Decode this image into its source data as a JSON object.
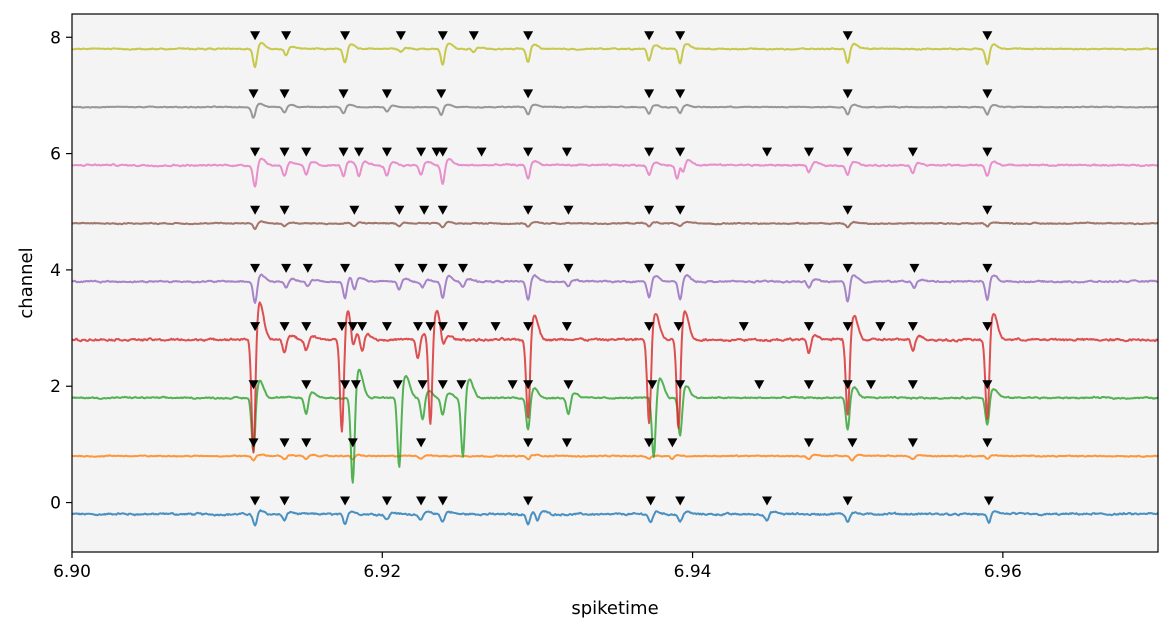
{
  "chart_data": {
    "type": "line",
    "title": "",
    "xlabel": "spiketime",
    "ylabel": "channel",
    "xlim": [
      6.9,
      6.97
    ],
    "ylim": [
      -0.85,
      8.4
    ],
    "xticks": [
      6.9,
      6.92,
      6.94,
      6.96
    ],
    "xtick_labels": [
      "6.90",
      "6.92",
      "6.94",
      "6.96"
    ],
    "yticks": [
      0,
      2,
      4,
      6,
      8
    ],
    "ytick_labels": [
      "0",
      "2",
      "4",
      "6",
      "8"
    ],
    "grid": false,
    "legend": "none",
    "background_color": "#f4f4f4",
    "marker": "black-triangle-down",
    "events": [
      {
        "x": 6.9118,
        "channel": 0
      },
      {
        "x": 6.9137,
        "channel": 0
      },
      {
        "x": 6.9176,
        "channel": 0
      },
      {
        "x": 6.9203,
        "channel": 0
      },
      {
        "x": 6.9225,
        "channel": 0
      },
      {
        "x": 6.9239,
        "channel": 0
      },
      {
        "x": 6.9294,
        "channel": 0
      },
      {
        "x": 6.9373,
        "channel": 0
      },
      {
        "x": 6.9392,
        "channel": 0
      },
      {
        "x": 6.9448,
        "channel": 0
      },
      {
        "x": 6.95,
        "channel": 0
      },
      {
        "x": 6.9591,
        "channel": 0
      },
      {
        "x": 6.9117,
        "channel": 1
      },
      {
        "x": 6.9137,
        "channel": 1
      },
      {
        "x": 6.9151,
        "channel": 1
      },
      {
        "x": 6.9181,
        "channel": 1
      },
      {
        "x": 6.9225,
        "channel": 1
      },
      {
        "x": 6.9294,
        "channel": 1
      },
      {
        "x": 6.9319,
        "channel": 1
      },
      {
        "x": 6.9372,
        "channel": 1
      },
      {
        "x": 6.9387,
        "channel": 1
      },
      {
        "x": 6.9475,
        "channel": 1
      },
      {
        "x": 6.9503,
        "channel": 1
      },
      {
        "x": 6.9542,
        "channel": 1
      },
      {
        "x": 6.959,
        "channel": 1
      },
      {
        "x": 6.9117,
        "channel": 2
      },
      {
        "x": 6.9151,
        "channel": 2
      },
      {
        "x": 6.9176,
        "channel": 2
      },
      {
        "x": 6.9183,
        "channel": 2
      },
      {
        "x": 6.921,
        "channel": 2
      },
      {
        "x": 6.9226,
        "channel": 2
      },
      {
        "x": 6.9239,
        "channel": 2
      },
      {
        "x": 6.9251,
        "channel": 2
      },
      {
        "x": 6.9284,
        "channel": 2
      },
      {
        "x": 6.9294,
        "channel": 2
      },
      {
        "x": 6.932,
        "channel": 2
      },
      {
        "x": 6.9374,
        "channel": 2
      },
      {
        "x": 6.9392,
        "channel": 2
      },
      {
        "x": 6.9443,
        "channel": 2
      },
      {
        "x": 6.9475,
        "channel": 2
      },
      {
        "x": 6.95,
        "channel": 2
      },
      {
        "x": 6.9515,
        "channel": 2
      },
      {
        "x": 6.9542,
        "channel": 2
      },
      {
        "x": 6.959,
        "channel": 2
      },
      {
        "x": 6.9118,
        "channel": 3
      },
      {
        "x": 6.9137,
        "channel": 3
      },
      {
        "x": 6.9151,
        "channel": 3
      },
      {
        "x": 6.9174,
        "channel": 3
      },
      {
        "x": 6.9181,
        "channel": 3
      },
      {
        "x": 6.9187,
        "channel": 3
      },
      {
        "x": 6.9203,
        "channel": 3
      },
      {
        "x": 6.9223,
        "channel": 3
      },
      {
        "x": 6.9231,
        "channel": 3
      },
      {
        "x": 6.9239,
        "channel": 3
      },
      {
        "x": 6.9252,
        "channel": 3
      },
      {
        "x": 6.9273,
        "channel": 3
      },
      {
        "x": 6.9294,
        "channel": 3
      },
      {
        "x": 6.9319,
        "channel": 3
      },
      {
        "x": 6.9372,
        "channel": 3
      },
      {
        "x": 6.9391,
        "channel": 3
      },
      {
        "x": 6.9433,
        "channel": 3
      },
      {
        "x": 6.9475,
        "channel": 3
      },
      {
        "x": 6.95,
        "channel": 3
      },
      {
        "x": 6.9521,
        "channel": 3
      },
      {
        "x": 6.9542,
        "channel": 3
      },
      {
        "x": 6.959,
        "channel": 3
      },
      {
        "x": 6.9118,
        "channel": 4
      },
      {
        "x": 6.9138,
        "channel": 4
      },
      {
        "x": 6.9152,
        "channel": 4
      },
      {
        "x": 6.9176,
        "channel": 4
      },
      {
        "x": 6.9211,
        "channel": 4
      },
      {
        "x": 6.9226,
        "channel": 4
      },
      {
        "x": 6.9239,
        "channel": 4
      },
      {
        "x": 6.9252,
        "channel": 4
      },
      {
        "x": 6.9294,
        "channel": 4
      },
      {
        "x": 6.932,
        "channel": 4
      },
      {
        "x": 6.9372,
        "channel": 4
      },
      {
        "x": 6.9392,
        "channel": 4
      },
      {
        "x": 6.9475,
        "channel": 4
      },
      {
        "x": 6.95,
        "channel": 4
      },
      {
        "x": 6.9543,
        "channel": 4
      },
      {
        "x": 6.959,
        "channel": 4
      },
      {
        "x": 6.9118,
        "channel": 5
      },
      {
        "x": 6.9137,
        "channel": 5
      },
      {
        "x": 6.9182,
        "channel": 5
      },
      {
        "x": 6.9211,
        "channel": 5
      },
      {
        "x": 6.9227,
        "channel": 5
      },
      {
        "x": 6.9239,
        "channel": 5
      },
      {
        "x": 6.9294,
        "channel": 5
      },
      {
        "x": 6.932,
        "channel": 5
      },
      {
        "x": 6.9372,
        "channel": 5
      },
      {
        "x": 6.9392,
        "channel": 5
      },
      {
        "x": 6.95,
        "channel": 5
      },
      {
        "x": 6.959,
        "channel": 5
      },
      {
        "x": 6.9118,
        "channel": 6
      },
      {
        "x": 6.9137,
        "channel": 6
      },
      {
        "x": 6.9151,
        "channel": 6
      },
      {
        "x": 6.9175,
        "channel": 6
      },
      {
        "x": 6.9185,
        "channel": 6
      },
      {
        "x": 6.9203,
        "channel": 6
      },
      {
        "x": 6.9225,
        "channel": 6
      },
      {
        "x": 6.9235,
        "channel": 6
      },
      {
        "x": 6.9239,
        "channel": 6
      },
      {
        "x": 6.9264,
        "channel": 6
      },
      {
        "x": 6.9294,
        "channel": 6
      },
      {
        "x": 6.9319,
        "channel": 6
      },
      {
        "x": 6.9372,
        "channel": 6
      },
      {
        "x": 6.9392,
        "channel": 6
      },
      {
        "x": 6.9448,
        "channel": 6
      },
      {
        "x": 6.9475,
        "channel": 6
      },
      {
        "x": 6.95,
        "channel": 6
      },
      {
        "x": 6.9542,
        "channel": 6
      },
      {
        "x": 6.959,
        "channel": 6
      },
      {
        "x": 6.9117,
        "channel": 7
      },
      {
        "x": 6.9137,
        "channel": 7
      },
      {
        "x": 6.9175,
        "channel": 7
      },
      {
        "x": 6.9203,
        "channel": 7
      },
      {
        "x": 6.9238,
        "channel": 7
      },
      {
        "x": 6.9294,
        "channel": 7
      },
      {
        "x": 6.9372,
        "channel": 7
      },
      {
        "x": 6.9392,
        "channel": 7
      },
      {
        "x": 6.95,
        "channel": 7
      },
      {
        "x": 6.959,
        "channel": 7
      },
      {
        "x": 6.9118,
        "channel": 8
      },
      {
        "x": 6.9138,
        "channel": 8
      },
      {
        "x": 6.9176,
        "channel": 8
      },
      {
        "x": 6.9212,
        "channel": 8
      },
      {
        "x": 6.9239,
        "channel": 8
      },
      {
        "x": 6.9259,
        "channel": 8
      },
      {
        "x": 6.9294,
        "channel": 8
      },
      {
        "x": 6.9372,
        "channel": 8
      },
      {
        "x": 6.9392,
        "channel": 8
      },
      {
        "x": 6.95,
        "channel": 8
      },
      {
        "x": 6.959,
        "channel": 8
      }
    ],
    "series": [
      {
        "channel": 0,
        "baseline": -0.2,
        "color": "#1f77b4",
        "noise": 0.025,
        "spikes": [
          [
            6.9118,
            -0.22
          ],
          [
            6.9137,
            -0.12
          ],
          [
            6.9176,
            -0.18
          ],
          [
            6.9203,
            -0.1
          ],
          [
            6.9225,
            -0.12
          ],
          [
            6.9239,
            -0.14
          ],
          [
            6.9294,
            -0.18
          ],
          [
            6.93,
            -0.16
          ],
          [
            6.9373,
            -0.16
          ],
          [
            6.9392,
            -0.14
          ],
          [
            6.9448,
            -0.12
          ],
          [
            6.95,
            -0.14
          ],
          [
            6.9591,
            -0.16
          ]
        ]
      },
      {
        "channel": 1,
        "baseline": 0.8,
        "color": "#ff7f0e",
        "noise": 0.015,
        "spikes": [
          [
            6.9117,
            -0.08
          ],
          [
            6.9137,
            -0.06
          ],
          [
            6.9151,
            -0.06
          ],
          [
            6.9181,
            -0.06
          ],
          [
            6.9225,
            -0.05
          ],
          [
            6.9294,
            -0.06
          ],
          [
            6.9372,
            -0.05
          ],
          [
            6.9387,
            -0.05
          ],
          [
            6.9475,
            -0.06
          ],
          [
            6.9503,
            -0.08
          ],
          [
            6.9542,
            -0.06
          ],
          [
            6.959,
            -0.06
          ]
        ]
      },
      {
        "channel": 2,
        "baseline": 1.8,
        "color": "#2ca02c",
        "noise": 0.02,
        "spikes": [
          [
            6.9117,
            -1.0
          ],
          [
            6.9151,
            -0.3
          ],
          [
            6.9181,
            -1.6
          ],
          [
            6.9211,
            -1.3
          ],
          [
            6.9226,
            -0.4
          ],
          [
            6.9239,
            -0.3
          ],
          [
            6.9252,
            -1.1
          ],
          [
            6.9294,
            -0.6
          ],
          [
            6.932,
            -0.3
          ],
          [
            6.9375,
            -1.1
          ],
          [
            6.9392,
            -0.7
          ],
          [
            6.95,
            -0.6
          ],
          [
            6.959,
            -0.5
          ]
        ]
      },
      {
        "channel": 3,
        "baseline": 2.8,
        "color": "#d62728",
        "noise": 0.03,
        "spikes": [
          [
            6.9117,
            -2.1
          ],
          [
            6.9137,
            -0.25
          ],
          [
            6.9151,
            -0.2
          ],
          [
            6.9174,
            -1.7
          ],
          [
            6.9181,
            -0.35
          ],
          [
            6.9187,
            -0.3
          ],
          [
            6.9223,
            -0.35
          ],
          [
            6.9231,
            -1.6
          ],
          [
            6.9239,
            -0.2
          ],
          [
            6.9294,
            -1.45
          ],
          [
            6.9372,
            -1.55
          ],
          [
            6.9391,
            -1.65
          ],
          [
            6.9475,
            -0.25
          ],
          [
            6.95,
            -1.4
          ],
          [
            6.9542,
            -0.2
          ],
          [
            6.959,
            -1.5
          ]
        ]
      },
      {
        "channel": 4,
        "baseline": 3.8,
        "color": "#9467bd",
        "noise": 0.02,
        "spikes": [
          [
            6.9118,
            -0.4
          ],
          [
            6.9138,
            -0.12
          ],
          [
            6.9152,
            -0.1
          ],
          [
            6.9176,
            -0.3
          ],
          [
            6.9182,
            -0.22
          ],
          [
            6.9211,
            -0.15
          ],
          [
            6.9226,
            -0.1
          ],
          [
            6.9239,
            -0.3
          ],
          [
            6.9252,
            -0.1
          ],
          [
            6.9294,
            -0.35
          ],
          [
            6.932,
            -0.08
          ],
          [
            6.9372,
            -0.3
          ],
          [
            6.9392,
            -0.35
          ],
          [
            6.9475,
            -0.12
          ],
          [
            6.95,
            -0.38
          ],
          [
            6.9543,
            -0.12
          ],
          [
            6.959,
            -0.35
          ]
        ]
      },
      {
        "channel": 5,
        "baseline": 4.8,
        "color": "#8c564b",
        "noise": 0.015,
        "spikes": [
          [
            6.9118,
            -0.1
          ],
          [
            6.9137,
            -0.05
          ],
          [
            6.9182,
            -0.05
          ],
          [
            6.9211,
            -0.05
          ],
          [
            6.9239,
            -0.08
          ],
          [
            6.9294,
            -0.06
          ],
          [
            6.9372,
            -0.06
          ],
          [
            6.9392,
            -0.06
          ],
          [
            6.95,
            -0.07
          ],
          [
            6.959,
            -0.06
          ]
        ]
      },
      {
        "channel": 6,
        "baseline": 5.8,
        "color": "#e377c2",
        "noise": 0.02,
        "spikes": [
          [
            6.9118,
            -0.4
          ],
          [
            6.9137,
            -0.2
          ],
          [
            6.9151,
            -0.18
          ],
          [
            6.9175,
            -0.2
          ],
          [
            6.9185,
            -0.22
          ],
          [
            6.9203,
            -0.2
          ],
          [
            6.9225,
            -0.18
          ],
          [
            6.9239,
            -0.35
          ],
          [
            6.9294,
            -0.25
          ],
          [
            6.9372,
            -0.18
          ],
          [
            6.939,
            -0.25
          ],
          [
            6.9394,
            -0.2
          ],
          [
            6.9475,
            -0.14
          ],
          [
            6.95,
            -0.18
          ],
          [
            6.9542,
            -0.14
          ],
          [
            6.959,
            -0.2
          ]
        ]
      },
      {
        "channel": 7,
        "baseline": 6.8,
        "color": "#7f7f7f",
        "noise": 0.012,
        "spikes": [
          [
            6.9117,
            -0.2
          ],
          [
            6.9137,
            -0.1
          ],
          [
            6.9175,
            -0.12
          ],
          [
            6.9203,
            -0.08
          ],
          [
            6.9238,
            -0.14
          ],
          [
            6.9294,
            -0.14
          ],
          [
            6.9372,
            -0.12
          ],
          [
            6.9392,
            -0.12
          ],
          [
            6.95,
            -0.14
          ],
          [
            6.959,
            -0.14
          ]
        ]
      },
      {
        "channel": 8,
        "baseline": 7.8,
        "color": "#bcbd22",
        "noise": 0.015,
        "spikes": [
          [
            6.9118,
            -0.35
          ],
          [
            6.9138,
            -0.12
          ],
          [
            6.9176,
            -0.25
          ],
          [
            6.9212,
            -0.06
          ],
          [
            6.9239,
            -0.3
          ],
          [
            6.9259,
            -0.06
          ],
          [
            6.9294,
            -0.25
          ],
          [
            6.9372,
            -0.22
          ],
          [
            6.9392,
            -0.28
          ],
          [
            6.95,
            -0.28
          ],
          [
            6.959,
            -0.28
          ]
        ]
      }
    ]
  }
}
